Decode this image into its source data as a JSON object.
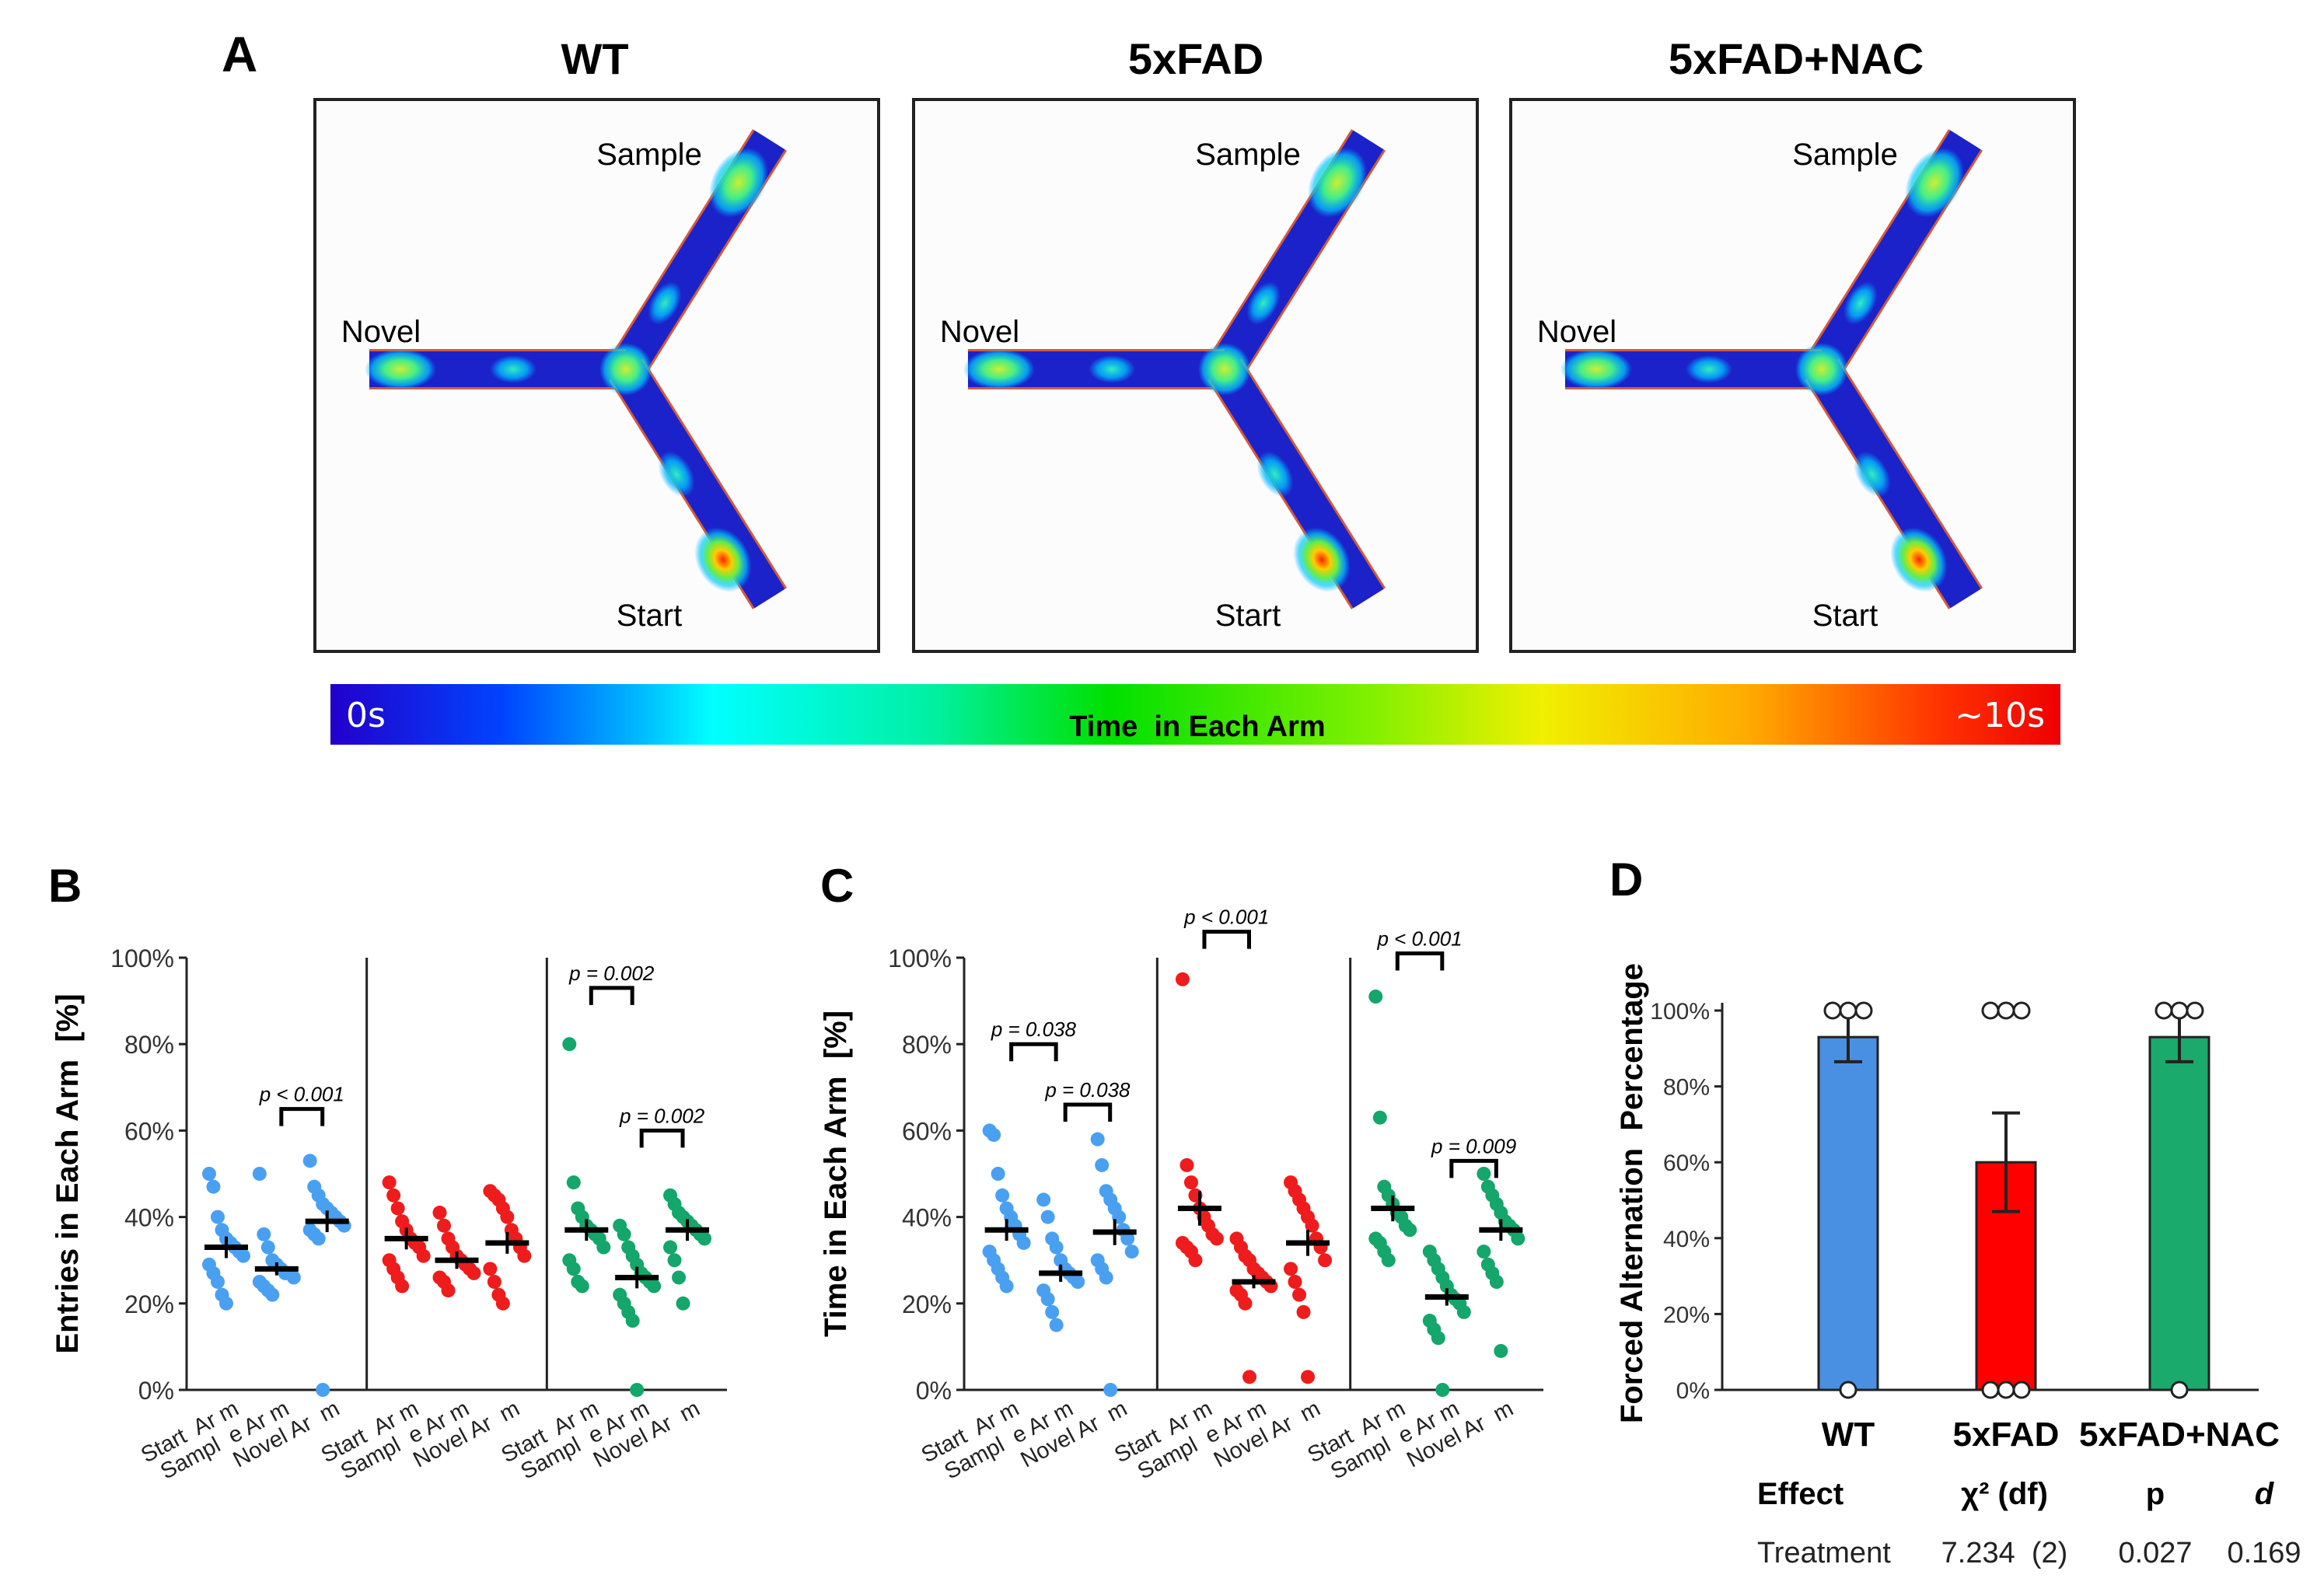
{
  "panel_a": {
    "letter": "A",
    "groups": [
      {
        "name": "WT",
        "arms": {
          "sample": "Sample",
          "novel": "Novel",
          "start": "Start"
        }
      },
      {
        "name": "5xFAD",
        "arms": {
          "sample": "Sample",
          "novel": "Novel",
          "start": "Start"
        }
      },
      {
        "name": "5xFAD+NAC",
        "arms": {
          "sample": "Sample",
          "novel": "Novel",
          "start": "Start"
        }
      }
    ],
    "colorbar": {
      "min_label": "0s",
      "max_label": "~10s",
      "title": "Time  in Each Arm"
    }
  },
  "colors": {
    "wt": "#4aa0f0",
    "fad": "#ee1c1c",
    "nac": "#14a66a",
    "bar_wt": "#4a90e2",
    "bar_fad": "#ff0000",
    "bar_nac": "#1aaa6c"
  },
  "chart_data": [
    {
      "id": "B",
      "type": "scatter",
      "letter": "B",
      "ylabel": "Entries in Each Arm  [%]",
      "ylim": [
        0,
        100
      ],
      "yticks": [
        "0%",
        "20%",
        "40%",
        "60%",
        "80%",
        "100%"
      ],
      "categories": [
        "Start  Ar m",
        "Sampl  e Ar m",
        "Novel Ar  m"
      ],
      "groups": [
        {
          "name": "WT",
          "means": [
            33,
            28,
            39
          ],
          "sems": [
            2.5,
            1.5,
            2.5
          ],
          "points": [
            [
              50,
              47,
              40,
              37,
              35,
              34,
              33,
              32,
              31,
              29,
              27,
              25,
              22,
              20
            ],
            [
              50,
              36,
              33,
              30,
              29,
              28,
              27,
              27,
              26,
              25,
              24,
              23,
              22
            ],
            [
              53,
              47,
              45,
              43,
              42,
              41,
              40,
              39,
              38,
              37,
              36,
              35,
              0
            ]
          ]
        },
        {
          "name": "5xFAD",
          "means": [
            35,
            30,
            34
          ],
          "sems": [
            2.5,
            2,
            2.5
          ],
          "points": [
            [
              48,
              45,
              42,
              39,
              37,
              35,
              34,
              33,
              31,
              30,
              28,
              26,
              24
            ],
            [
              41,
              38,
              35,
              33,
              31,
              30,
              29,
              28,
              27,
              26,
              25,
              23
            ],
            [
              46,
              45,
              44,
              42,
              40,
              37,
              35,
              33,
              31,
              28,
              25,
              22,
              20
            ]
          ]
        },
        {
          "name": "5xFAD+NAC",
          "means": [
            37,
            26,
            37
          ],
          "sems": [
            2.5,
            2.5,
            2.5
          ],
          "points": [
            [
              80,
              48,
              42,
              40,
              38,
              37,
              36,
              35,
              33,
              30,
              28,
              25,
              24
            ],
            [
              38,
              36,
              33,
              31,
              29,
              27,
              26,
              25,
              24,
              22,
              20,
              18,
              16,
              0
            ],
            [
              45,
              43,
              41,
              40,
              39,
              38,
              37,
              36,
              35,
              33,
              30,
              26,
              20
            ]
          ]
        }
      ],
      "annotations": [
        {
          "group": 0,
          "from": 1,
          "to": 2,
          "label": "p < 0.001",
          "y": 65
        },
        {
          "group": 2,
          "from": 0,
          "to": 1,
          "label": "p = 0.002",
          "y": 93
        },
        {
          "group": 2,
          "from": 1,
          "to": 2,
          "label": "p = 0.002",
          "y": 60
        }
      ]
    },
    {
      "id": "C",
      "type": "scatter",
      "letter": "C",
      "ylabel": "Time in Each Arm  [%]",
      "ylim": [
        0,
        100
      ],
      "yticks": [
        "0%",
        "20%",
        "40%",
        "60%",
        "80%",
        "100%"
      ],
      "categories": [
        "Start  Ar m",
        "Sampl  e Ar m",
        "Novel Ar  m"
      ],
      "groups": [
        {
          "name": "WT",
          "means": [
            37,
            27,
            36.5
          ],
          "sems": [
            2.5,
            2,
            3
          ],
          "points": [
            [
              60,
              59,
              50,
              45,
              42,
              40,
              38,
              36,
              34,
              32,
              30,
              28,
              26,
              24
            ],
            [
              44,
              40,
              35,
              33,
              30,
              28,
              27,
              26,
              25,
              23,
              21,
              18,
              15
            ],
            [
              58,
              52,
              46,
              44,
              42,
              40,
              37,
              35,
              32,
              30,
              28,
              26,
              0
            ]
          ]
        },
        {
          "name": "5xFAD",
          "means": [
            42,
            25,
            34
          ],
          "sems": [
            4,
            1.5,
            3
          ],
          "points": [
            [
              95,
              52,
              48,
              45,
              42,
              40,
              38,
              36,
              35,
              34,
              33,
              32,
              30
            ],
            [
              35,
              33,
              31,
              30,
              28,
              27,
              26,
              25,
              24,
              23,
              22,
              20,
              3
            ],
            [
              48,
              46,
              44,
              42,
              40,
              38,
              35,
              33,
              30,
              28,
              25,
              22,
              18,
              3
            ]
          ]
        },
        {
          "name": "5xFAD+NAC",
          "means": [
            42,
            21.5,
            37
          ],
          "sems": [
            3,
            2,
            2.5
          ],
          "points": [
            [
              91,
              63,
              47,
              45,
              43,
              41,
              40,
              38,
              37,
              35,
              34,
              32,
              30
            ],
            [
              32,
              30,
              28,
              26,
              24,
              22,
              21,
              20,
              18,
              16,
              14,
              12,
              0
            ],
            [
              50,
              47,
              45,
              43,
              41,
              39,
              38,
              37,
              35,
              32,
              29,
              27,
              25,
              9
            ]
          ]
        }
      ],
      "annotations": [
        {
          "group": 0,
          "from": 0,
          "to": 1,
          "label": "p = 0.038",
          "y": 80
        },
        {
          "group": 0,
          "from": 1,
          "to": 2,
          "label": "p = 0.038",
          "y": 66
        },
        {
          "group": 1,
          "from": 0,
          "to": 1,
          "label": "p < 0.001",
          "y": 106
        },
        {
          "group": 2,
          "from": 0,
          "to": 1,
          "label": "p < 0.001",
          "y": 101
        },
        {
          "group": 2,
          "from": 1,
          "to": 2,
          "label": "p = 0.009",
          "y": 53
        }
      ]
    },
    {
      "id": "D",
      "type": "bar",
      "letter": "D",
      "ylabel": "Forced Alternation  Percentage",
      "ylim": [
        0,
        100
      ],
      "yticks": [
        "0%",
        "20%",
        "40%",
        "60%",
        "80%",
        "100%"
      ],
      "categories": [
        "WT",
        "5xFAD",
        "5xFAD+NAC"
      ],
      "values": [
        93,
        60,
        93
      ],
      "errors": [
        6.5,
        13,
        6.5
      ],
      "points": [
        {
          "at100": 3,
          "at0": 1
        },
        {
          "at100": 3,
          "at0": 3
        },
        {
          "at100": 3,
          "at0": 1
        }
      ],
      "stats_table": {
        "headers": [
          "Effect",
          "χ² (df)",
          "p",
          "d"
        ],
        "row": [
          "Treatment",
          "7.234  (2)",
          "0.027",
          "0.169"
        ]
      }
    }
  ]
}
